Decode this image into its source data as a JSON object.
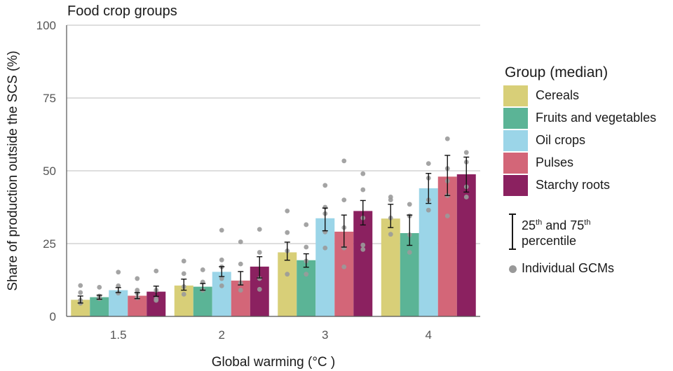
{
  "chart_data": {
    "type": "bar",
    "title": "Food crop groups",
    "xlabel": "Global warming (°C )",
    "ylabel": "Share of production outside the SCS (%)",
    "ylim": [
      0,
      100
    ],
    "yticks": [
      "0",
      "25",
      "50",
      "75",
      "100"
    ],
    "categories": [
      "1.5",
      "2",
      "3",
      "4"
    ],
    "legend_title": "Group (median)",
    "legend_placement": "right",
    "grid": "horizontal",
    "series": [
      {
        "name": "Cereals",
        "color": "#d8cf78",
        "values": [
          5.7,
          10.6,
          22.0,
          33.6
        ],
        "q25": [
          4.6,
          9.0,
          19.3,
          30.5
        ],
        "q75": [
          7.0,
          12.8,
          25.5,
          38.5
        ],
        "gcms": [
          [
            4.5,
            5.5,
            8.2,
            10.6
          ],
          [
            7.6,
            10.2,
            14.7,
            19.0
          ],
          [
            14.5,
            22.5,
            28.8,
            36.2
          ],
          [
            28.2,
            33.8,
            40.0,
            41.0
          ]
        ]
      },
      {
        "name": "Fruits and vegetables",
        "color": "#5bb496",
        "values": [
          6.6,
          10.2,
          19.3,
          28.6
        ],
        "q25": [
          5.9,
          9.0,
          16.9,
          24.4
        ],
        "q75": [
          7.3,
          11.3,
          21.5,
          34.8
        ],
        "gcms": [
          [
            6.1,
            7.0,
            10.0
          ],
          [
            9.0,
            11.8,
            16.0
          ],
          [
            14.5,
            19.0,
            23.8,
            31.5
          ],
          [
            22.0,
            28.0,
            34.5,
            38.5
          ]
        ]
      },
      {
        "name": "Oil crops",
        "color": "#9bd5e8",
        "values": [
          9.0,
          15.3,
          33.7,
          44.0
        ],
        "q25": [
          8.2,
          13.7,
          29.4,
          38.8
        ],
        "q75": [
          9.9,
          17.1,
          37.2,
          49.1
        ],
        "gcms": [
          [
            8.0,
            10.5,
            15.2
          ],
          [
            10.5,
            13.0,
            17.0,
            19.4,
            29.6
          ],
          [
            23.5,
            29.0,
            35.3,
            37.5,
            45.0
          ],
          [
            36.5,
            40.0,
            47.5,
            52.5
          ]
        ]
      },
      {
        "name": "Pulses",
        "color": "#d36678",
        "values": [
          7.1,
          12.3,
          29.1,
          48.0
        ],
        "q25": [
          6.1,
          10.8,
          23.8,
          41.5
        ],
        "q75": [
          8.2,
          15.4,
          34.8,
          55.3
        ],
        "gcms": [
          [
            6.4,
            8.0,
            9.0,
            13.0
          ],
          [
            9.0,
            11.5,
            18.0,
            25.6
          ],
          [
            17.0,
            23.5,
            30.5,
            40.0,
            53.4
          ],
          [
            34.5,
            41.5,
            46.5,
            50.8,
            61.0
          ]
        ]
      },
      {
        "name": "Starchy roots",
        "color": "#8b2160",
        "values": [
          8.5,
          17.1,
          36.2,
          48.8
        ],
        "q25": [
          6.9,
          13.2,
          31.4,
          42.7
        ],
        "q75": [
          10.4,
          20.5,
          39.8,
          54.7
        ],
        "gcms": [
          [
            5.5,
            6.0,
            9.0,
            15.6
          ],
          [
            9.3,
            13.0,
            22.0,
            29.9
          ],
          [
            23.0,
            24.5,
            33.8,
            43.5,
            49.0
          ],
          [
            41.0,
            44.5,
            53.0,
            56.3
          ]
        ]
      }
    ],
    "extra_legend": {
      "percentile_label_1": "25",
      "percentile_sup_1": "th",
      "percentile_label_2": " and 75",
      "percentile_sup_2": "th",
      "percentile_label_3": "percentile",
      "gcm_label": "Individual GCMs"
    }
  }
}
